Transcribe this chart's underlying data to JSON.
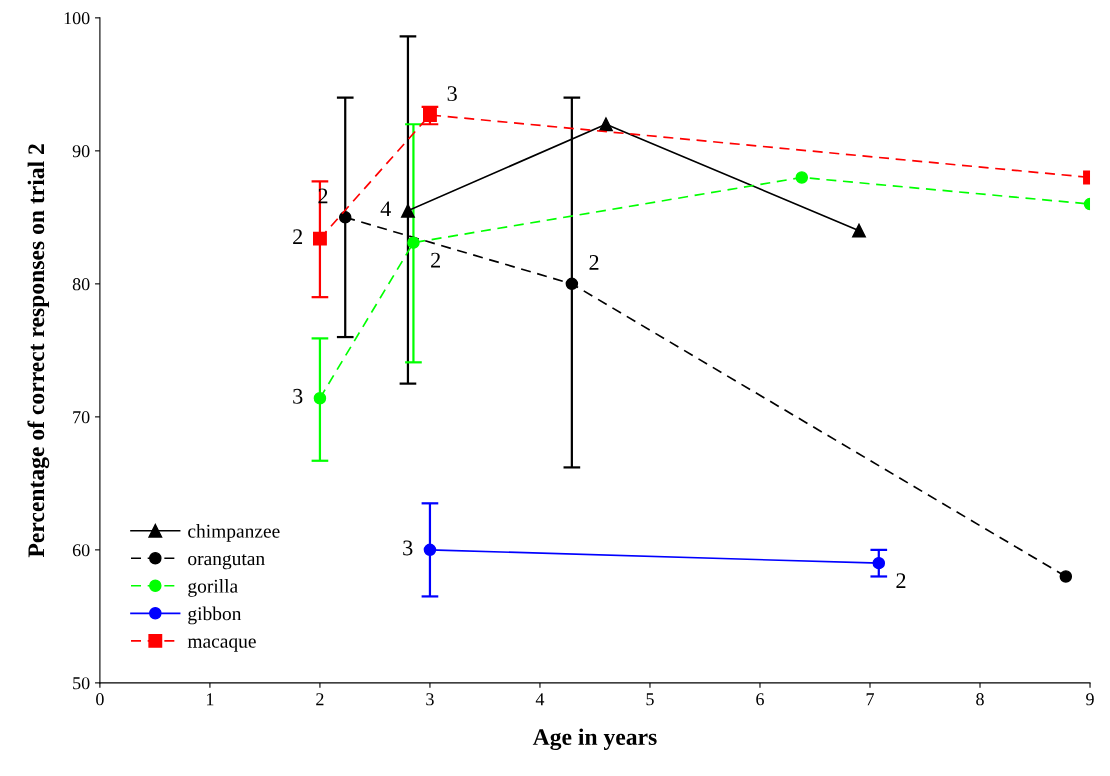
{
  "chart_data": {
    "type": "line",
    "xlabel": "Age in years",
    "ylabel": "Percentage of correct responses on trial 2",
    "xlim": [
      0,
      9
    ],
    "xticks": [
      0,
      1,
      2,
      3,
      4,
      5,
      6,
      7,
      8,
      9
    ],
    "ylim": [
      50,
      100
    ],
    "yticks": [
      50,
      60,
      70,
      80,
      90,
      100
    ],
    "grid": false,
    "legend": "bottom left",
    "series": [
      {
        "name": "chimpanzee",
        "color": "#000000",
        "marker": "triangle",
        "line_style": "solid",
        "x": [
          2.8,
          4.6,
          6.9
        ],
        "values": [
          85.5,
          92.0,
          84.0
        ],
        "errors": [
          [
            72.5,
            98.6
          ],
          null,
          null
        ]
      },
      {
        "name": "orangutan",
        "color": "#000000",
        "marker": "circle",
        "line_style": "dashed",
        "x": [
          2.23,
          4.29,
          8.78
        ],
        "values": [
          85.0,
          80.0,
          58.0
        ],
        "errors": [
          [
            76.0,
            94.0
          ],
          [
            66.2,
            94.0
          ],
          null
        ]
      },
      {
        "name": "gorilla",
        "color": "#00ff00",
        "marker": "circle",
        "line_style": "dashed",
        "x": [
          2.0,
          2.85,
          6.38,
          9.0
        ],
        "values": [
          71.4,
          83.1,
          88.0,
          86.0
        ],
        "errors": [
          [
            66.7,
            75.9
          ],
          [
            74.1,
            92.0
          ],
          null,
          null
        ]
      },
      {
        "name": "gibbon",
        "color": "#0000ff",
        "marker": "circle",
        "line_style": "solid",
        "x": [
          3.0,
          7.08
        ],
        "values": [
          60.0,
          59.0
        ],
        "errors": [
          [
            56.5,
            63.5
          ],
          [
            58.0,
            60.0
          ]
        ]
      },
      {
        "name": "macaque",
        "color": "#ff0000",
        "marker": "square",
        "line_style": "dashed",
        "x": [
          2.0,
          3.0,
          9.0
        ],
        "values": [
          83.4,
          92.7,
          88.0
        ],
        "errors": [
          [
            79.0,
            87.7
          ],
          [
            92.0,
            93.3
          ],
          null
        ]
      }
    ],
    "annotations": [
      {
        "text": "2",
        "x": 2.0,
        "y": 83.4
      },
      {
        "text": "2",
        "x": 2.23,
        "y": 85.0
      },
      {
        "text": "3",
        "x": 3.0,
        "y": 92.7
      },
      {
        "text": "4",
        "x": 2.8,
        "y": 85.5
      },
      {
        "text": "2",
        "x": 2.85,
        "y": 83.1
      },
      {
        "text": "2",
        "x": 4.29,
        "y": 80.0
      },
      {
        "text": "3",
        "x": 2.0,
        "y": 71.4
      },
      {
        "text": "3",
        "x": 3.0,
        "y": 60.0
      },
      {
        "text": "2",
        "x": 7.08,
        "y": 59.0
      }
    ]
  }
}
